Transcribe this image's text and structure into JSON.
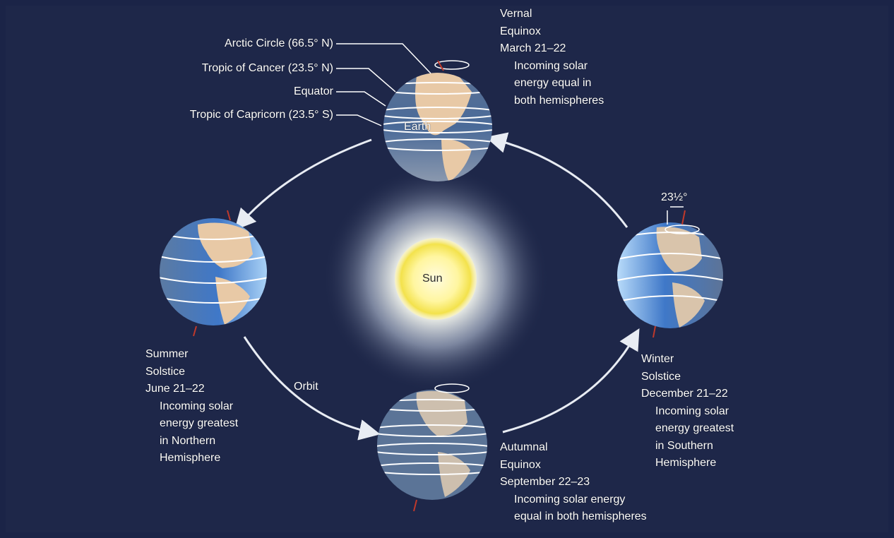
{
  "labels": {
    "arctic_circle": "Arctic Circle (66.5° N)",
    "tropic_cancer": "Tropic of Cancer (23.5° N)",
    "equator": "Equator",
    "tropic_capricorn": "Tropic of Capricorn (23.5° S)",
    "earth": "Earth",
    "sun": "Sun",
    "orbit": "Orbit",
    "tilt": "23½°"
  },
  "vernal": {
    "line1": "Vernal",
    "line2": "Equinox",
    "date": "March 21–22",
    "desc1": "Incoming solar",
    "desc2": "energy equal in",
    "desc3": "both hemispheres"
  },
  "summer": {
    "line1": "Summer",
    "line2": "Solstice",
    "date": "June 21–22",
    "desc1": "Incoming solar",
    "desc2": "energy greatest",
    "desc3": "in Northern",
    "desc4": "Hemisphere"
  },
  "winter": {
    "line1": "Winter",
    "line2": "Solstice",
    "date": "December 21–22",
    "desc1": "Incoming solar",
    "desc2": "energy greatest",
    "desc3": "in Southern",
    "desc4": "Hemisphere"
  },
  "autumnal": {
    "line1": "Autumnal",
    "line2": "Equinox",
    "date": "September 22–23",
    "desc1": "Incoming solar energy",
    "desc2": "equal in both hemispheres"
  },
  "colors": {
    "background": "#1b2447",
    "ocean": "#3f7fd0",
    "land": "#e8c9a6",
    "sun_core": "#fff27a",
    "axis": "#c0392b"
  }
}
